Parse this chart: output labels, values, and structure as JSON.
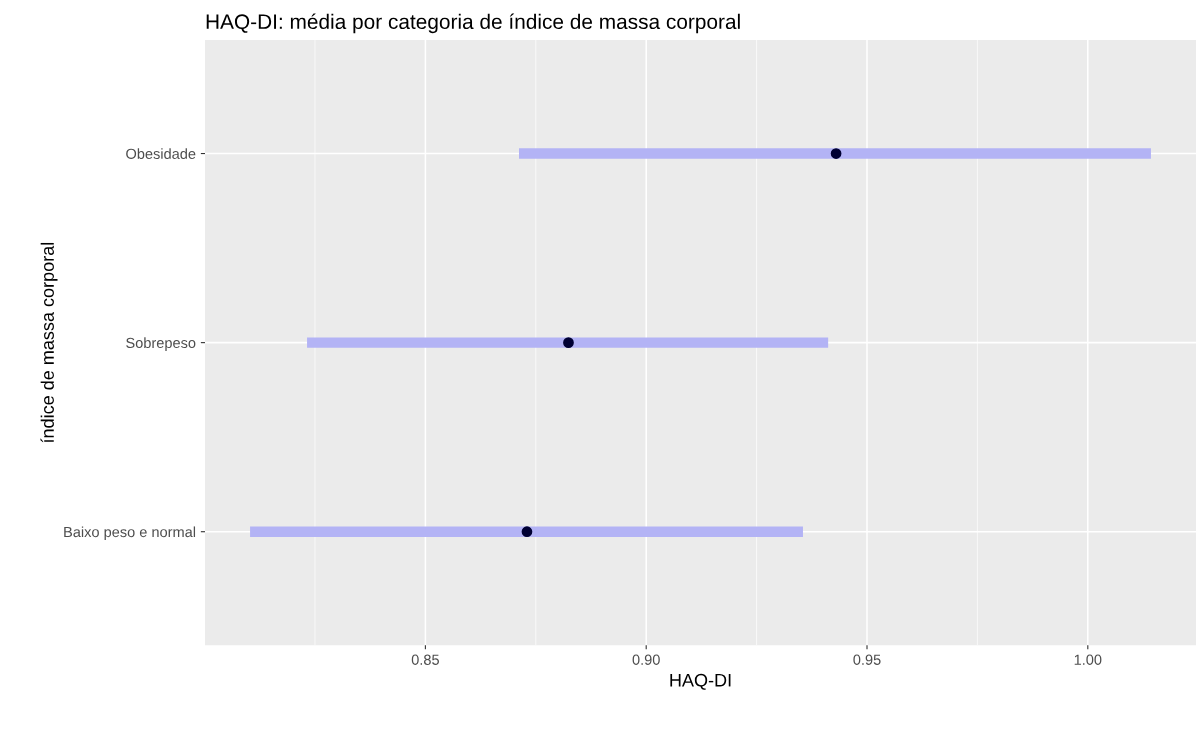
{
  "chart_data": {
    "type": "bar",
    "title": "HAQ-DI: média por categoria de índice de massa corporal",
    "xlabel": "HAQ-DI",
    "ylabel": "índice de massa corporal",
    "orientation": "horizontal",
    "categories": [
      "Obesidade",
      "Sobrepeso",
      "Baixo peso e normal"
    ],
    "series": [
      {
        "color": "#b3b3f5",
        "base": [
          0.8712,
          0.8232,
          0.8103
        ],
        "values": [
          0.1431,
          0.118,
          0.1252
        ]
      },
      {
        "type": "scatter",
        "color": "#000033",
        "values": [
          0.943,
          0.8824,
          0.873
        ]
      }
    ],
    "xlim": [
      0.8001,
      1.0245
    ],
    "xticks": [
      {
        "value": 0.85,
        "label": "0.85"
      },
      {
        "value": 0.9,
        "label": "0.90"
      },
      {
        "value": 0.95,
        "label": "0.95"
      },
      {
        "value": 1.0,
        "label": "1.00"
      }
    ],
    "grid": true,
    "marker": "circle"
  }
}
